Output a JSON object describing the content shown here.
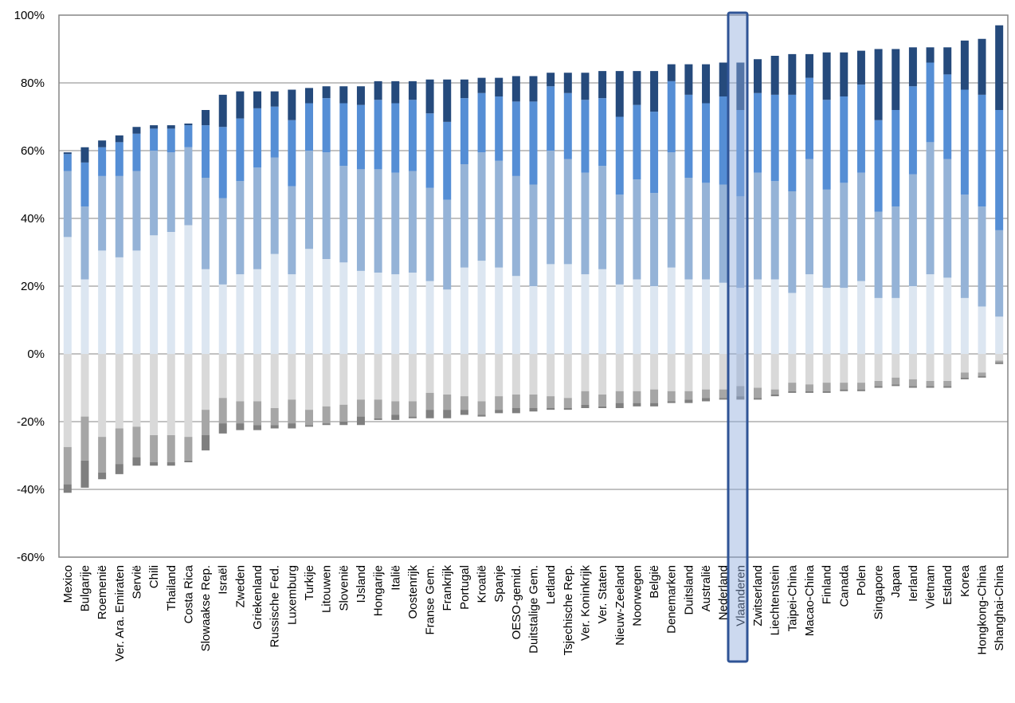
{
  "chart_data": {
    "type": "bar",
    "stacked": true,
    "grid": true,
    "categories": [
      "Mexico",
      "Bulgarije",
      "Roemenië",
      "Ver. Ara. Emiraten",
      "Servië",
      "Chili",
      "Thailand",
      "Costa Rica",
      "Slowaakse Rep.",
      "Israël",
      "Zweden",
      "Griekenland",
      "Russische Fed.",
      "Luxemburg",
      "Turkije",
      "Litouwen",
      "Slovenië",
      "IJsland",
      "Hongarije",
      "Italië",
      "Oostenrijk",
      "Franse Gem.",
      "Frankrijk",
      "Portugal",
      "Kroatië",
      "Spanje",
      "OESO-gemid.",
      "Duitstalige Gem.",
      "Letland",
      "Tsjechische Rep.",
      "Ver. Koninkrijk",
      "Ver. Staten",
      "Nieuw-Zeeland",
      "Noorwegen",
      "België",
      "Denemarken",
      "Duitsland",
      "Australië",
      "Nederland",
      "Vlaanderen",
      "Zwitserland",
      "Liechtenstein",
      "Taipei-China",
      "Macao-China",
      "Finland",
      "Canada",
      "Polen",
      "Singapore",
      "Japan",
      "Ierland",
      "Vietnam",
      "Estland",
      "Korea",
      "Hongkong-China",
      "Shanghai-China"
    ],
    "series": [
      {
        "color": "#d9d9d9",
        "values": [
          -27.5,
          -18.5,
          -24.5,
          -22,
          -21.5,
          -24,
          -24,
          -24.5,
          -16.5,
          -13,
          -14,
          -14,
          -16,
          -13.5,
          -16.5,
          -15.5,
          -15,
          -13.5,
          -13.5,
          -14,
          -14,
          -11.5,
          -12,
          -12.5,
          -14,
          -12.5,
          -12,
          -12,
          -12.5,
          -13,
          -11,
          -12,
          -11,
          -11,
          -10.5,
          -11,
          -11,
          -10.5,
          -10.5,
          -9.5,
          -10,
          -10.5,
          -8.5,
          -9,
          -8.5,
          -8.5,
          -8.5,
          -8,
          -7,
          -7.5,
          -8,
          -8,
          -5.5,
          -5.5,
          -2
        ]
      },
      {
        "color": "#a6a6a6",
        "values": [
          -11,
          -13,
          -10.5,
          -10.5,
          -9,
          -8,
          -8,
          -7,
          -7.5,
          -7.5,
          -6.5,
          -7,
          -5,
          -7,
          -4.5,
          -5,
          -5,
          -5,
          -5.5,
          -4,
          -4.5,
          -5,
          -4.5,
          -4,
          -4,
          -4,
          -4,
          -4,
          -3.5,
          -3,
          -4,
          -3.5,
          -3.5,
          -3.5,
          -4,
          -3,
          -2.5,
          -2.5,
          -2.5,
          -3,
          -3,
          -1.5,
          -2.5,
          -2,
          -2.5,
          -2,
          -2,
          -1.5,
          -2,
          -2,
          -1.5,
          -1.5,
          -1.5,
          -1,
          -0.5
        ]
      },
      {
        "color": "#7f7f7f",
        "values": [
          -2.5,
          -8,
          -2,
          -3,
          -2.5,
          -1,
          -1,
          -0.5,
          -4.5,
          -3,
          -2,
          -1.5,
          -1,
          -1.5,
          -0.5,
          -0.5,
          -1,
          -2.5,
          -0.5,
          -1.5,
          -0.5,
          -2.5,
          -2.5,
          -1.5,
          -0.5,
          -1,
          -1.5,
          -1,
          -0.5,
          -0.5,
          -1,
          -0.5,
          -1.5,
          -1,
          -1,
          -0.5,
          -1,
          -1,
          -0.5,
          -1,
          -0.5,
          -0.5,
          -0.5,
          -0.5,
          -0.5,
          -0.5,
          -0.5,
          -0.5,
          -0.5,
          -0.5,
          -0.5,
          -0.5,
          -0.5,
          -0.5,
          -0.5
        ]
      },
      {
        "color": "#dce6f1",
        "values": [
          34.5,
          22,
          30.5,
          28.5,
          30.5,
          35,
          36,
          38,
          25,
          20.5,
          23.5,
          25,
          29.5,
          23.5,
          31,
          28,
          27,
          24.5,
          24,
          23.5,
          24,
          21.5,
          19,
          25.5,
          27.5,
          25.5,
          23,
          20,
          26.5,
          26.5,
          23.5,
          25,
          20.5,
          22,
          20,
          25.5,
          22,
          22,
          21,
          19.5,
          22,
          22,
          18,
          23.5,
          19.5,
          19.5,
          21.5,
          16.5,
          16.5,
          20,
          23.5,
          22.5,
          16.5,
          14,
          11
        ]
      },
      {
        "color": "#95b3d7",
        "values": [
          19.5,
          21.5,
          22,
          24,
          23.5,
          25,
          23.5,
          23,
          27,
          25.5,
          27.5,
          30,
          28.5,
          26,
          29,
          31.5,
          28.5,
          30,
          30.5,
          30,
          30,
          27.5,
          26.5,
          30.5,
          32,
          31.5,
          29.5,
          30,
          33.5,
          31,
          30,
          30.5,
          26.5,
          29.5,
          27.5,
          34,
          30,
          28.5,
          29,
          27,
          31.5,
          29,
          30,
          34,
          29,
          31,
          32,
          25.5,
          27,
          33,
          39,
          35,
          30.5,
          29.5,
          25.5
        ]
      },
      {
        "color": "#558ed5",
        "values": [
          5,
          13,
          8.5,
          10,
          11,
          6.5,
          7,
          6.5,
          15.5,
          21,
          18.5,
          17.5,
          15,
          19.5,
          14,
          16,
          18.5,
          19,
          20.5,
          20.5,
          21,
          22,
          23,
          19.5,
          17.5,
          19,
          22,
          24.5,
          19,
          19.5,
          21.5,
          20,
          23,
          22,
          24,
          21,
          24.5,
          23.5,
          26,
          25.5,
          23.5,
          25.5,
          28.5,
          24,
          26.5,
          25.5,
          26,
          27,
          28.5,
          26,
          23.5,
          25,
          31,
          33,
          35.5
        ]
      },
      {
        "color": "#254a7c",
        "values": [
          0.5,
          4.5,
          2,
          2,
          2,
          1,
          1,
          0.5,
          4.5,
          9.5,
          8,
          5,
          4.5,
          9,
          4.5,
          3.5,
          5,
          5.5,
          5.5,
          6.5,
          5.5,
          10,
          12.5,
          5.5,
          4.5,
          5.5,
          7.5,
          7.5,
          4,
          6,
          8,
          8,
          13.5,
          10,
          12,
          5,
          9,
          11.5,
          10,
          14,
          10,
          11.5,
          12,
          7,
          14,
          13,
          10,
          21,
          18,
          11.5,
          4.5,
          8,
          14.5,
          16.5,
          25
        ]
      }
    ],
    "ylim": [
      -60,
      100
    ],
    "yticks": [
      {
        "value": -60,
        "label": "-60%"
      },
      {
        "value": -40,
        "label": "-40%"
      },
      {
        "value": -20,
        "label": "-20%"
      },
      {
        "value": 0,
        "label": "0%"
      },
      {
        "value": 20,
        "label": "20%"
      },
      {
        "value": 40,
        "label": "40%"
      },
      {
        "value": 60,
        "label": "60%"
      },
      {
        "value": 80,
        "label": "80%"
      },
      {
        "value": 100,
        "label": "100%"
      }
    ]
  }
}
